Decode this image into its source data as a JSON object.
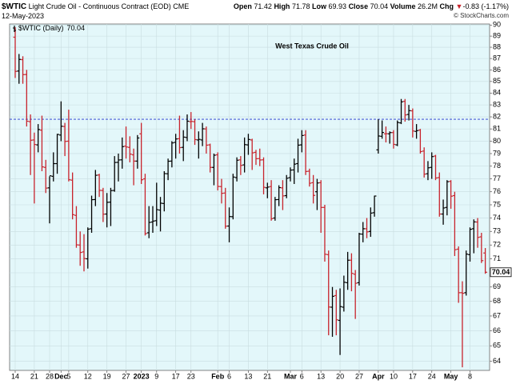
{
  "header": {
    "symbol": "$WTIC",
    "name": "Light Crude Oil - Continuous Contract (EOD)",
    "exchange": "CME",
    "date": "12-May-2023",
    "watermark": "© StockCharts.com",
    "open_label": "Open",
    "high_label": "High",
    "low_label": "Low",
    "close_label": "Close",
    "volume_label": "Volume",
    "volume": "26.2M",
    "change_label": "Chg",
    "change": "-0.83 (-1.17%)"
  },
  "chart_data": {
    "type": "ohlc",
    "legend_label": "$WTIC (Daily)",
    "annotation": "West Texas Crude Oil",
    "annotation_color": "#1f35c8",
    "background": "#e3f7fa",
    "up_color": "#000000",
    "down_color": "#c8232c",
    "log": true,
    "grid": true,
    "reference_line": {
      "value": 81.8,
      "color": "#2233cc"
    },
    "ylim": [
      63.4,
      90.1
    ],
    "yticks": [
      64,
      65,
      66,
      67,
      68,
      69,
      70,
      71,
      72,
      73,
      74,
      75,
      76,
      77,
      78,
      79,
      80,
      81,
      82,
      83,
      84,
      85,
      86,
      87,
      88,
      89,
      90
    ],
    "categories": [
      "14",
      null,
      null,
      null,
      null,
      "21",
      null,
      null,
      null,
      "28",
      null,
      null,
      "Dec",
      null,
      "5",
      null,
      null,
      null,
      null,
      "12",
      null,
      null,
      null,
      null,
      "19",
      null,
      null,
      null,
      null,
      "27",
      null,
      null,
      null,
      "2023",
      null,
      null,
      null,
      "9",
      null,
      null,
      null,
      null,
      "17",
      null,
      null,
      null,
      "23",
      null,
      null,
      null,
      null,
      null,
      null,
      "Feb",
      null,
      null,
      "6",
      null,
      null,
      null,
      null,
      "13",
      null,
      null,
      null,
      null,
      "21",
      null,
      null,
      null,
      null,
      null,
      "Mar",
      null,
      null,
      "6",
      null,
      null,
      null,
      null,
      "13",
      null,
      null,
      null,
      null,
      "20",
      null,
      null,
      null,
      null,
      "27",
      null,
      null,
      null,
      null,
      "Apr",
      null,
      null,
      null,
      "10",
      null,
      null,
      null,
      null,
      "17",
      null,
      null,
      null,
      null,
      "24",
      null,
      null,
      null,
      null,
      "May",
      null,
      null,
      null,
      null,
      "8",
      null,
      null,
      null,
      null
    ],
    "open": [
      88.9,
      85.9,
      86.9,
      85.6,
      81.6,
      80.1,
      79.7,
      80.9,
      77.9,
      76.3,
      77.2,
      78.2,
      80.5,
      81.2,
      80.0,
      76.9,
      74.2,
      72.0,
      71.5,
      71.0,
      73.2,
      75.4,
      77.3,
      76.1,
      74.3,
      75.2,
      76.1,
      78.3,
      78.5,
      79.6,
      79.5,
      78.9,
      78.4,
      80.6,
      77.0,
      72.9,
      73.7,
      73.8,
      74.6,
      75.1,
      77.4,
      78.4,
      79.9,
      80.2,
      79.5,
      80.3,
      81.6,
      81.6,
      80.1,
      80.1,
      81.0,
      79.7,
      77.9,
      78.9,
      76.4,
      75.9,
      73.4,
      74.1,
      77.1,
      78.5,
      78.1,
      79.7,
      80.1,
      79.1,
      78.6,
      78.5,
      76.3,
      76.4,
      74.0,
      75.4,
      76.3,
      75.7,
      77.1,
      77.7,
      78.2,
      79.7,
      80.5,
      77.6,
      76.7,
      76.0,
      76.7,
      74.8,
      71.3,
      67.6,
      68.4,
      66.7,
      67.6,
      69.3,
      70.9,
      69.9,
      69.3,
      72.8,
      73.2,
      73.0,
      74.4,
      79.3,
      80.4,
      80.6,
      80.6,
      80.7,
      79.7,
      81.5,
      83.3,
      82.2,
      82.5,
      80.8,
      80.9,
      79.2,
      77.4,
      77.9,
      78.8,
      77.1,
      74.3,
      74.8,
      76.8,
      75.7,
      71.7,
      68.6,
      68.6,
      71.3,
      73.2,
      73.7,
      72.6,
      71.42
    ],
    "high": [
      89.8,
      87.4,
      87.2,
      86.0,
      82.2,
      80.7,
      81.4,
      82.1,
      78.5,
      77.2,
      79.1,
      80.6,
      83.3,
      81.5,
      82.6,
      77.5,
      74.9,
      73.0,
      72.8,
      73.3,
      75.7,
      77.7,
      77.4,
      76.3,
      75.9,
      76.3,
      78.8,
      79.0,
      80.3,
      81.2,
      80.4,
      79.4,
      80.5,
      81.5,
      77.4,
      74.9,
      74.9,
      76.7,
      75.6,
      77.6,
      78.6,
      80.0,
      80.6,
      82.1,
      80.9,
      82.2,
      82.4,
      81.8,
      80.8,
      81.5,
      81.2,
      79.8,
      79.0,
      79.1,
      77.0,
      76.3,
      74.8,
      77.4,
      78.7,
      78.8,
      80.3,
      80.6,
      80.2,
      79.3,
      79.4,
      78.7,
      76.7,
      76.9,
      75.6,
      76.5,
      76.9,
      77.3,
      77.9,
      78.6,
      80.2,
      80.9,
      80.9,
      77.8,
      77.3,
      77.0,
      76.9,
      75.0,
      71.6,
      69.0,
      68.8,
      68.9,
      69.8,
      71.5,
      71.4,
      70.2,
      72.9,
      73.7,
      74.0,
      74.8,
      75.7,
      81.8,
      81.7,
      81.2,
      80.8,
      80.9,
      81.7,
      83.5,
      83.5,
      83.0,
      82.7,
      81.4,
      81.0,
      79.5,
      78.4,
      79.1,
      78.9,
      77.5,
      75.4,
      76.9,
      76.9,
      76.0,
      71.9,
      69.4,
      71.6,
      73.3,
      73.9,
      74.0,
      72.9,
      71.78
    ],
    "low": [
      85.3,
      84.8,
      84.8,
      81.2,
      77.3,
      75.1,
      79.1,
      77.6,
      75.9,
      73.6,
      76.8,
      77.4,
      80.0,
      78.8,
      76.8,
      73.9,
      71.8,
      70.5,
      70.1,
      70.3,
      72.9,
      74.9,
      75.6,
      73.7,
      73.3,
      73.4,
      76.0,
      76.8,
      77.8,
      78.6,
      78.3,
      76.5,
      77.8,
      76.6,
      72.7,
      72.5,
      72.9,
      73.4,
      73.0,
      74.5,
      76.9,
      77.9,
      78.6,
      79.0,
      78.4,
      80.0,
      81.0,
      79.7,
      78.6,
      79.6,
      79.0,
      77.5,
      76.5,
      76.1,
      75.1,
      73.2,
      72.2,
      73.9,
      76.8,
      77.3,
      77.5,
      78.9,
      77.7,
      78.1,
      78.0,
      75.8,
      75.5,
      73.8,
      73.8,
      74.9,
      74.6,
      75.5,
      76.8,
      76.6,
      77.5,
      79.1,
      77.3,
      76.4,
      75.1,
      74.6,
      72.9,
      70.8,
      65.7,
      65.6,
      65.7,
      64.4,
      67.3,
      68.8,
      68.7,
      66.8,
      69.1,
      72.2,
      72.5,
      72.6,
      74.1,
      79.0,
      80.2,
      79.9,
      79.8,
      79.4,
      79.6,
      81.4,
      81.6,
      81.7,
      80.3,
      80.2,
      79.0,
      77.1,
      76.9,
      77.0,
      76.9,
      74.1,
      73.5,
      74.2,
      74.7,
      71.2,
      67.9,
      63.6,
      68.4,
      70.8,
      71.4,
      71.8,
      70.7,
      69.93
    ],
    "close": [
      85.87,
      86.92,
      85.59,
      81.64,
      80.08,
      79.73,
      80.95,
      77.94,
      76.28,
      77.24,
      78.2,
      80.55,
      81.22,
      79.98,
      76.93,
      74.25,
      72.01,
      71.46,
      71.02,
      73.17,
      75.39,
      77.28,
      76.11,
      74.29,
      75.19,
      76.09,
      78.29,
      78.49,
      79.56,
      79.53,
      78.96,
      78.4,
      80.26,
      76.93,
      72.84,
      73.67,
      73.77,
      74.63,
      75.12,
      77.41,
      78.39,
      79.86,
      80.18,
      79.48,
      80.33,
      81.64,
      81.62,
      80.13,
      80.15,
      81.01,
      79.68,
      77.9,
      78.87,
      76.41,
      75.88,
      73.39,
      74.11,
      77.14,
      78.47,
      78.06,
      79.72,
      80.14,
      79.06,
      78.59,
      78.49,
      76.34,
      76.36,
      73.95,
      75.39,
      76.32,
      75.68,
      77.05,
      77.69,
      78.16,
      79.68,
      80.46,
      77.58,
      76.66,
      75.72,
      76.68,
      74.8,
      71.33,
      67.61,
      68.35,
      66.74,
      67.64,
      69.33,
      70.9,
      69.96,
      69.26,
      72.81,
      73.2,
      72.97,
      74.37,
      75.67,
      80.42,
      80.71,
      80.61,
      80.7,
      79.74,
      81.53,
      83.26,
      82.16,
      82.52,
      80.83,
      80.86,
      79.16,
      77.37,
      77.87,
      78.76,
      77.07,
      74.3,
      74.76,
      76.78,
      75.66,
      71.66,
      68.6,
      68.56,
      71.34,
      73.16,
      73.71,
      72.56,
      70.87,
      70.04
    ]
  }
}
